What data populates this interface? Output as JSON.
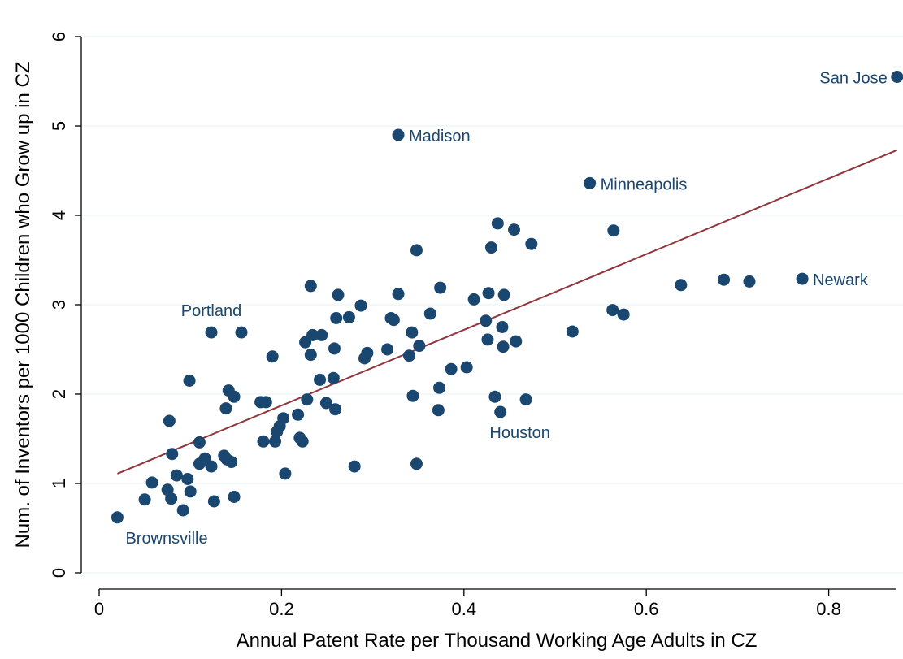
{
  "chart_data": {
    "type": "scatter",
    "xlabel": "Annual Patent Rate per Thousand Working Age Adults in CZ",
    "ylabel": "Num. of Inventors per 1000 Children who Grow up in CZ",
    "xlim": [
      0,
      0.875
    ],
    "ylim": [
      0,
      6
    ],
    "xticks": [
      0,
      0.2,
      0.4,
      0.6,
      0.8
    ],
    "yticks": [
      0,
      1,
      2,
      3,
      4,
      5,
      6
    ],
    "xtick_labels": [
      "0",
      "0.2",
      "0.4",
      "0.6",
      "0.8"
    ],
    "ytick_labels": [
      "0",
      "1",
      "2",
      "3",
      "4",
      "5",
      "6"
    ],
    "grid": "horizontal",
    "colors": {
      "points": "#1a476f",
      "fit_line": "#90353b",
      "labels": "#1a476f",
      "grid": "#eaf2f3"
    },
    "fit_line": {
      "x": [
        0.02,
        0.875
      ],
      "y": [
        1.11,
        4.73
      ]
    },
    "labeled_points": [
      {
        "label": "San Jose",
        "x": 0.875,
        "y": 5.55
      },
      {
        "label": "Madison",
        "x": 0.328,
        "y": 4.9
      },
      {
        "label": "Minneapolis",
        "x": 0.538,
        "y": 4.36
      },
      {
        "label": "Newark",
        "x": 0.771,
        "y": 3.29
      },
      {
        "label": "Portland",
        "x": 0.123,
        "y": 2.69
      },
      {
        "label": "Houston",
        "x": 0.44,
        "y": 1.8
      },
      {
        "label": "Brownsville",
        "x": 0.02,
        "y": 0.62
      }
    ],
    "points": [
      [
        0.05,
        0.82
      ],
      [
        0.058,
        1.01
      ],
      [
        0.075,
        0.93
      ],
      [
        0.079,
        0.83
      ],
      [
        0.077,
        1.7
      ],
      [
        0.08,
        1.33
      ],
      [
        0.085,
        1.09
      ],
      [
        0.092,
        0.7
      ],
      [
        0.097,
        1.05
      ],
      [
        0.1,
        0.91
      ],
      [
        0.099,
        2.15
      ],
      [
        0.11,
        1.46
      ],
      [
        0.11,
        1.22
      ],
      [
        0.116,
        1.28
      ],
      [
        0.123,
        1.19
      ],
      [
        0.126,
        0.8
      ],
      [
        0.137,
        1.31
      ],
      [
        0.14,
        1.27
      ],
      [
        0.145,
        1.24
      ],
      [
        0.148,
        0.85
      ],
      [
        0.139,
        1.84
      ],
      [
        0.142,
        2.04
      ],
      [
        0.148,
        1.97
      ],
      [
        0.156,
        2.69
      ],
      [
        0.177,
        1.91
      ],
      [
        0.183,
        1.91
      ],
      [
        0.18,
        1.47
      ],
      [
        0.19,
        2.42
      ],
      [
        0.193,
        1.47
      ],
      [
        0.195,
        1.58
      ],
      [
        0.198,
        1.64
      ],
      [
        0.202,
        1.73
      ],
      [
        0.204,
        1.11
      ],
      [
        0.218,
        1.77
      ],
      [
        0.22,
        1.51
      ],
      [
        0.223,
        1.47
      ],
      [
        0.226,
        2.58
      ],
      [
        0.228,
        1.94
      ],
      [
        0.232,
        2.44
      ],
      [
        0.234,
        2.66
      ],
      [
        0.232,
        3.21
      ],
      [
        0.242,
        2.16
      ],
      [
        0.244,
        2.66
      ],
      [
        0.249,
        1.9
      ],
      [
        0.257,
        2.18
      ],
      [
        0.258,
        2.51
      ],
      [
        0.26,
        2.85
      ],
      [
        0.262,
        3.11
      ],
      [
        0.259,
        1.83
      ],
      [
        0.274,
        2.86
      ],
      [
        0.28,
        1.19
      ],
      [
        0.287,
        2.99
      ],
      [
        0.291,
        2.4
      ],
      [
        0.294,
        2.46
      ],
      [
        0.316,
        2.5
      ],
      [
        0.32,
        2.85
      ],
      [
        0.323,
        2.83
      ],
      [
        0.328,
        3.12
      ],
      [
        0.34,
        2.43
      ],
      [
        0.343,
        2.69
      ],
      [
        0.344,
        1.98
      ],
      [
        0.348,
        1.22
      ],
      [
        0.348,
        3.61
      ],
      [
        0.351,
        2.54
      ],
      [
        0.363,
        2.9
      ],
      [
        0.372,
        1.82
      ],
      [
        0.373,
        2.07
      ],
      [
        0.374,
        3.19
      ],
      [
        0.386,
        2.28
      ],
      [
        0.403,
        2.3
      ],
      [
        0.411,
        3.06
      ],
      [
        0.424,
        2.82
      ],
      [
        0.426,
        2.61
      ],
      [
        0.427,
        3.13
      ],
      [
        0.43,
        3.64
      ],
      [
        0.434,
        1.97
      ],
      [
        0.437,
        3.91
      ],
      [
        0.442,
        2.75
      ],
      [
        0.443,
        2.53
      ],
      [
        0.444,
        3.11
      ],
      [
        0.455,
        3.84
      ],
      [
        0.457,
        2.59
      ],
      [
        0.468,
        1.94
      ],
      [
        0.474,
        3.68
      ],
      [
        0.519,
        2.7
      ],
      [
        0.563,
        2.94
      ],
      [
        0.564,
        3.83
      ],
      [
        0.575,
        2.89
      ],
      [
        0.638,
        3.22
      ],
      [
        0.685,
        3.28
      ],
      [
        0.713,
        3.26
      ]
    ]
  }
}
